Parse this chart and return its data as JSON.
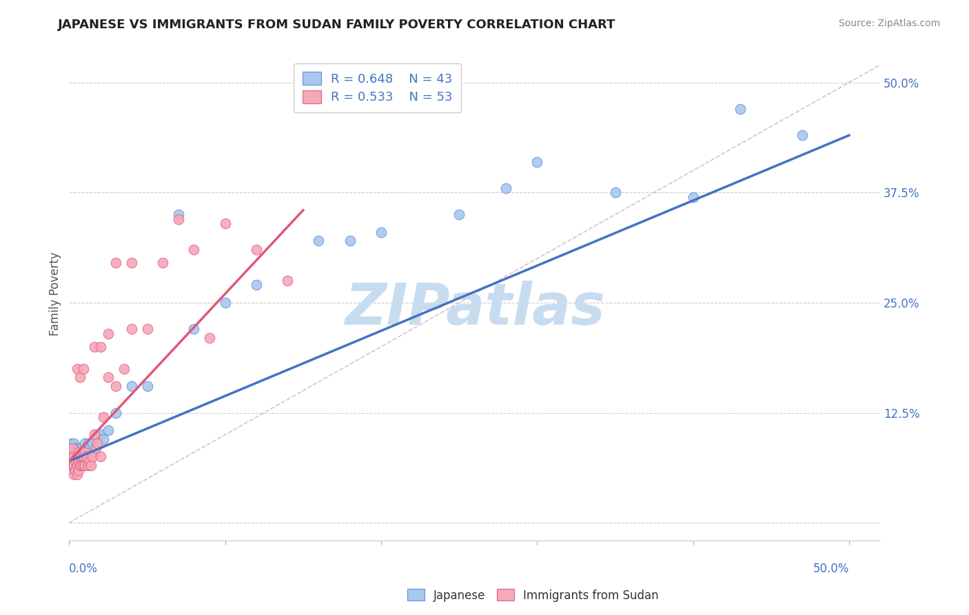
{
  "title": "JAPANESE VS IMMIGRANTS FROM SUDAN FAMILY POVERTY CORRELATION CHART",
  "source": "Source: ZipAtlas.com",
  "ylabel": "Family Poverty",
  "y_tick_vals": [
    0.0,
    0.125,
    0.25,
    0.375,
    0.5
  ],
  "y_tick_labels": [
    "",
    "12.5%",
    "25.0%",
    "37.5%",
    "50.0%"
  ],
  "x_tick_vals": [
    0.0,
    0.5
  ],
  "x_tick_labels": [
    "0.0%",
    "50.0%"
  ],
  "legend_blue_text": "R = 0.648    N = 43",
  "legend_pink_text": "R = 0.533    N = 53",
  "legend_label_blue": "Japanese",
  "legend_label_pink": "Immigrants from Sudan",
  "blue_color": "#A8C8F0",
  "pink_color": "#F5A8B8",
  "blue_edge_color": "#6090D0",
  "pink_edge_color": "#E06080",
  "blue_line_color": "#4472C4",
  "pink_line_color": "#E05878",
  "diag_line_color": "#D0B0C0",
  "watermark_color": "#C8DCF0",
  "xlim": [
    0.0,
    0.52
  ],
  "ylim": [
    -0.02,
    0.54
  ],
  "blue_x": [
    0.001,
    0.002,
    0.002,
    0.003,
    0.003,
    0.004,
    0.004,
    0.005,
    0.005,
    0.006,
    0.006,
    0.007,
    0.007,
    0.008,
    0.009,
    0.01,
    0.01,
    0.011,
    0.012,
    0.013,
    0.015,
    0.016,
    0.018,
    0.02,
    0.022,
    0.025,
    0.03,
    0.04,
    0.05,
    0.08,
    0.12,
    0.16,
    0.2,
    0.25,
    0.3,
    0.35,
    0.4,
    0.43,
    0.47,
    0.07,
    0.1,
    0.18,
    0.28
  ],
  "blue_y": [
    0.09,
    0.085,
    0.08,
    0.09,
    0.08,
    0.085,
    0.075,
    0.08,
    0.075,
    0.085,
    0.08,
    0.08,
    0.075,
    0.085,
    0.08,
    0.09,
    0.08,
    0.085,
    0.09,
    0.085,
    0.09,
    0.08,
    0.1,
    0.1,
    0.095,
    0.105,
    0.125,
    0.155,
    0.155,
    0.22,
    0.27,
    0.32,
    0.33,
    0.35,
    0.41,
    0.375,
    0.37,
    0.47,
    0.44,
    0.35,
    0.25,
    0.32,
    0.38
  ],
  "pink_x": [
    0.001,
    0.001,
    0.002,
    0.002,
    0.003,
    0.003,
    0.003,
    0.004,
    0.004,
    0.005,
    0.005,
    0.005,
    0.006,
    0.006,
    0.006,
    0.007,
    0.007,
    0.008,
    0.008,
    0.009,
    0.009,
    0.01,
    0.01,
    0.011,
    0.012,
    0.013,
    0.014,
    0.015,
    0.016,
    0.017,
    0.018,
    0.02,
    0.022,
    0.025,
    0.03,
    0.035,
    0.04,
    0.05,
    0.06,
    0.07,
    0.08,
    0.09,
    0.1,
    0.12,
    0.14,
    0.016,
    0.02,
    0.025,
    0.03,
    0.04,
    0.005,
    0.007,
    0.009
  ],
  "pink_y": [
    0.08,
    0.065,
    0.085,
    0.065,
    0.075,
    0.065,
    0.055,
    0.07,
    0.06,
    0.075,
    0.065,
    0.055,
    0.08,
    0.07,
    0.06,
    0.075,
    0.065,
    0.075,
    0.065,
    0.075,
    0.065,
    0.08,
    0.065,
    0.075,
    0.065,
    0.07,
    0.065,
    0.075,
    0.1,
    0.085,
    0.09,
    0.075,
    0.12,
    0.165,
    0.155,
    0.175,
    0.22,
    0.22,
    0.295,
    0.345,
    0.31,
    0.21,
    0.34,
    0.31,
    0.275,
    0.2,
    0.2,
    0.215,
    0.295,
    0.295,
    0.175,
    0.165,
    0.175
  ],
  "blue_line_x0": 0.0,
  "blue_line_x1": 0.5,
  "blue_line_y0": 0.07,
  "blue_line_y1": 0.44,
  "pink_line_x0": 0.0,
  "pink_line_x1": 0.15,
  "pink_line_y0": 0.07,
  "pink_line_y1": 0.355
}
